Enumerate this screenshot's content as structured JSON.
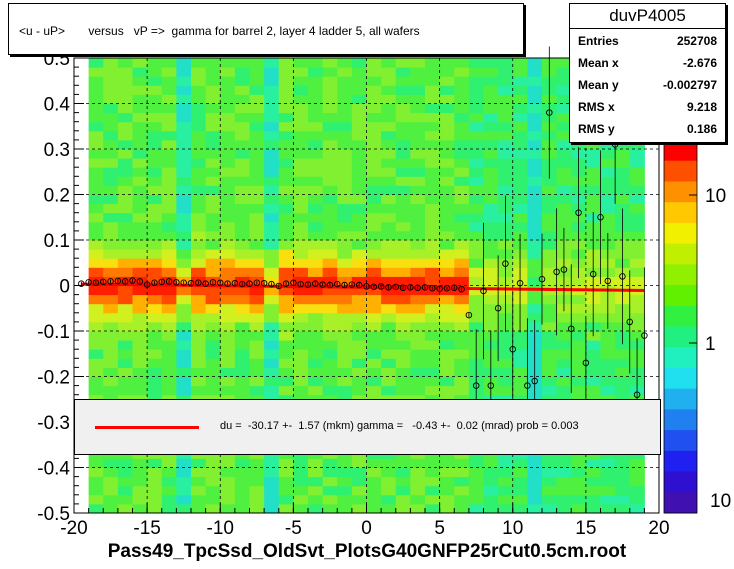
{
  "title": "<u - uP>       versus   vP =>  gamma for barrel 2, layer 4 ladder 5, all wafers",
  "stats": {
    "name": "duvP4005",
    "rows": [
      {
        "label": "Entries",
        "value": "252708"
      },
      {
        "label": "Mean x",
        "value": "-2.676"
      },
      {
        "label": "Mean y",
        "value": "-0.002797"
      },
      {
        "label": "RMS x",
        "value": "9.218"
      },
      {
        "label": "RMS y",
        "value": "0.186"
      }
    ]
  },
  "fit_text": "du =  -30.17 +-  1.57 (mkm) gamma =   -0.43 +-  0.02 (mrad) prob = 0.003",
  "footer": "Pass49_TpcSsd_OldSvt_PlotsG40GNFP25rCut0.5cm.root",
  "colors": {
    "fit_line": "#ff0000",
    "profile_points": "#000000"
  },
  "chart_data": {
    "type": "heatmap",
    "xlim": [
      -20,
      20
    ],
    "ylim": [
      -0.5,
      0.5
    ],
    "x_ticks": [
      -20,
      -15,
      -10,
      -5,
      0,
      5,
      10,
      15,
      20
    ],
    "y_ticks": [
      -0.5,
      -0.4,
      -0.3,
      -0.2,
      -0.1,
      0,
      0.1,
      0.2,
      0.3,
      0.4,
      0.5
    ],
    "colorbar": {
      "scale": "log",
      "ticks": [
        {
          "value": 1,
          "label": "1"
        },
        {
          "value": 10,
          "label": "10"
        }
      ],
      "bottom_label": "10"
    },
    "fit_line": {
      "x": [
        -19.5,
        19
      ],
      "y": [
        0.003,
        -0.011
      ]
    },
    "profile": {
      "x": [
        -19.5,
        -19,
        -18.5,
        -18,
        -17.5,
        -17,
        -16.5,
        -16,
        -15.5,
        -15,
        -14.5,
        -14,
        -13.5,
        -13,
        -12.5,
        -12,
        -11.5,
        -11,
        -10.5,
        -10,
        -9.5,
        -9,
        -8.5,
        -8,
        -7.5,
        -7,
        -6.5,
        -6,
        -5.5,
        -5,
        -4.5,
        -4,
        -3.5,
        -3,
        -2.5,
        -2,
        -1.5,
        -1,
        -0.5,
        0,
        0.5,
        1,
        1.5,
        2,
        2.5,
        3,
        3.5,
        4,
        4.5,
        5,
        5.5,
        6,
        6.5,
        7,
        7.5,
        8,
        8.5,
        9,
        9.5,
        10,
        10.5,
        11,
        11.5,
        12,
        12.5,
        13,
        13.5,
        14,
        14.5,
        15,
        15.5,
        16,
        16.5,
        17,
        17.5,
        18,
        18.5,
        19
      ],
      "y": [
        0.004,
        0.007,
        0.006,
        0.008,
        0.009,
        0.01,
        0.009,
        0.011,
        0.009,
        0.002,
        0.006,
        0.008,
        0.009,
        0.007,
        0.006,
        0.005,
        0.006,
        0.004,
        0.007,
        0.006,
        0.004,
        0.005,
        0.003,
        0.004,
        0.006,
        0.005,
        0.003,
        -0.001,
        0.004,
        0.006,
        0.003,
        0.002,
        0.004,
        0.002,
        0.001,
        0.003,
        0.001,
        0.002,
        0.001,
        -0.002,
        -0.003,
        -0.002,
        -0.004,
        -0.003,
        -0.005,
        -0.004,
        -0.005,
        -0.004,
        -0.006,
        -0.007,
        -0.006,
        -0.005,
        -0.008,
        -0.065,
        -0.22,
        -0.012,
        -0.22,
        -0.05,
        0.048,
        -0.14,
        0.005,
        -0.22,
        -0.21,
        0.014,
        0.38,
        0.03,
        0.035,
        -0.095,
        0.16,
        -0.17,
        0.025,
        0.15,
        0.01,
        0.31,
        0.02,
        -0.08,
        -0.24,
        -0.11
      ]
    }
  }
}
